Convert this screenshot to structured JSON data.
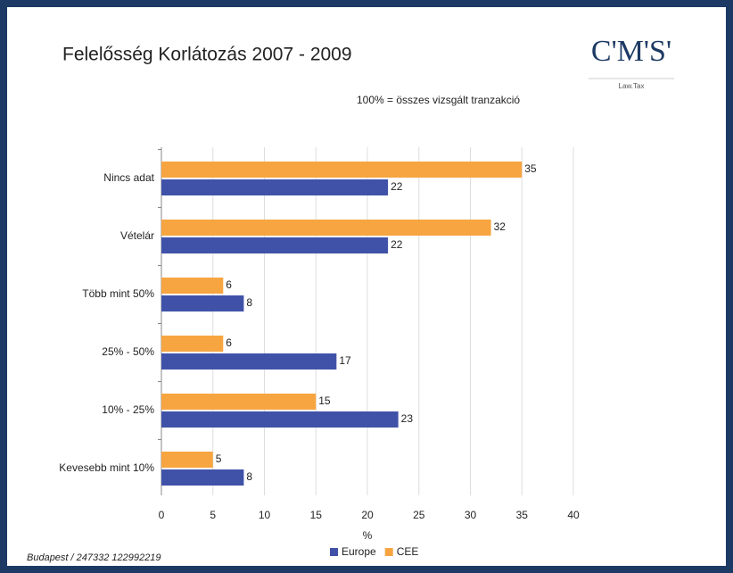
{
  "chart_data": {
    "type": "barh",
    "title": "Felelősség Korlátozás 2007 - 2009",
    "subtitle": "100% = összes vizsgált tranzakció",
    "logo": "C'M'S'",
    "logo_tagline": "Law.Tax",
    "x_label": "%",
    "footer": "Budapest / 247332 122992219",
    "categories": [
      "Nincs adat",
      "Vételár",
      "Több mint 50%",
      "25% - 50%",
      "10% - 25%",
      "Kevesebb mint 10%"
    ],
    "series": [
      {
        "name": "Europe",
        "color": "#4052a8",
        "values": [
          22,
          22,
          8,
          17,
          23,
          8
        ]
      },
      {
        "name": "CEE",
        "color": "#f7a541",
        "values": [
          35,
          32,
          6,
          6,
          15,
          5
        ]
      }
    ],
    "xlim": [
      0,
      40
    ],
    "xticks": [
      0,
      5,
      10,
      15,
      20,
      25,
      30,
      35,
      40
    ],
    "grid": true
  }
}
